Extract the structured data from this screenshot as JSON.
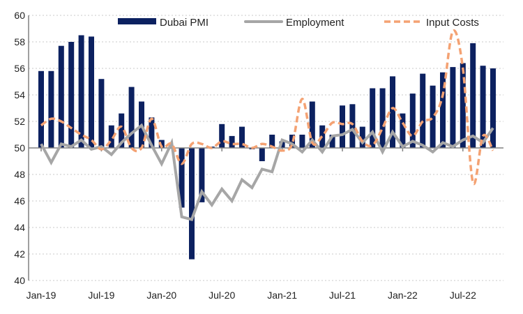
{
  "chart_data": {
    "type": "bar",
    "title": "",
    "xlabel": "",
    "ylabel": "",
    "ylim": [
      40,
      60
    ],
    "yticks": [
      "40",
      "42",
      "44",
      "46",
      "48",
      "50",
      "52",
      "54",
      "56",
      "58",
      "60"
    ],
    "xtick_labels": [
      "Jan-19",
      "Jul-19",
      "Jan-20",
      "Jul-20",
      "Jan-21",
      "Jul-21",
      "Jan-22",
      "Jul-22"
    ],
    "baseline": 50,
    "grid": true,
    "legend_position": "top",
    "categories": [
      "Jan-19",
      "Feb-19",
      "Mar-19",
      "Apr-19",
      "May-19",
      "Jun-19",
      "Jul-19",
      "Aug-19",
      "Sep-19",
      "Oct-19",
      "Nov-19",
      "Dec-19",
      "Jan-20",
      "Feb-20",
      "Mar-20",
      "Apr-20",
      "May-20",
      "Jun-20",
      "Jul-20",
      "Aug-20",
      "Sep-20",
      "Oct-20",
      "Nov-20",
      "Dec-20",
      "Jan-21",
      "Feb-21",
      "Mar-21",
      "Apr-21",
      "May-21",
      "Jun-21",
      "Jul-21",
      "Aug-21",
      "Sep-21",
      "Oct-21",
      "Nov-21",
      "Dec-21",
      "Jan-22",
      "Feb-22",
      "Mar-22",
      "Apr-22",
      "May-22",
      "Jun-22",
      "Jul-22",
      "Aug-22",
      "Sep-22",
      "Oct-22"
    ],
    "series": [
      {
        "name": "Dubai PMI",
        "kind": "bar",
        "color": "#0c2160",
        "values": [
          55.8,
          55.8,
          57.7,
          58.0,
          58.5,
          58.4,
          55.2,
          51.7,
          52.6,
          54.6,
          53.5,
          52.3,
          50.6,
          50.0,
          45.5,
          41.6,
          45.9,
          50.1,
          51.8,
          50.9,
          51.6,
          49.9,
          49.0,
          51.0,
          50.5,
          51.0,
          51.0,
          53.5,
          51.7,
          51.0,
          53.2,
          53.3,
          51.6,
          54.5,
          54.5,
          55.4,
          52.6,
          54.1,
          55.6,
          54.7,
          55.7,
          56.1,
          56.4,
          57.9,
          56.2,
          56.0
        ]
      },
      {
        "name": "Employment",
        "kind": "line",
        "color": "#a6a6a6",
        "values": [
          50.3,
          48.9,
          50.3,
          50.1,
          50.6,
          49.9,
          50.1,
          49.5,
          50.4,
          51.1,
          51.7,
          50.2,
          48.8,
          50.4,
          44.8,
          44.6,
          46.7,
          45.7,
          46.9,
          46.0,
          47.6,
          47.0,
          48.4,
          48.2,
          50.6,
          50.3,
          49.7,
          50.6,
          49.7,
          50.9,
          51.0,
          51.4,
          50.4,
          51.2,
          49.7,
          51.2,
          50.1,
          50.5,
          50.2,
          49.7,
          50.4,
          50.1,
          50.6,
          50.9,
          50.4,
          51.5
        ]
      },
      {
        "name": "Input Costs",
        "kind": "dashed-line",
        "color": "#f4a273",
        "values": [
          51.7,
          52.2,
          52.0,
          51.5,
          51.0,
          50.6,
          49.9,
          50.6,
          51.6,
          50.0,
          50.0,
          52.2,
          50.1,
          50.3,
          48.8,
          50.3,
          50.3,
          50.0,
          50.5,
          50.3,
          50.3,
          50.0,
          50.3,
          50.1,
          49.8,
          50.3,
          53.7,
          50.4,
          50.9,
          51.9,
          51.8,
          51.8,
          50.5,
          50.2,
          51.5,
          53.0,
          51.9,
          50.9,
          52.0,
          52.3,
          54.0,
          58.8,
          56.0,
          47.4,
          50.9,
          49.8
        ]
      }
    ]
  }
}
